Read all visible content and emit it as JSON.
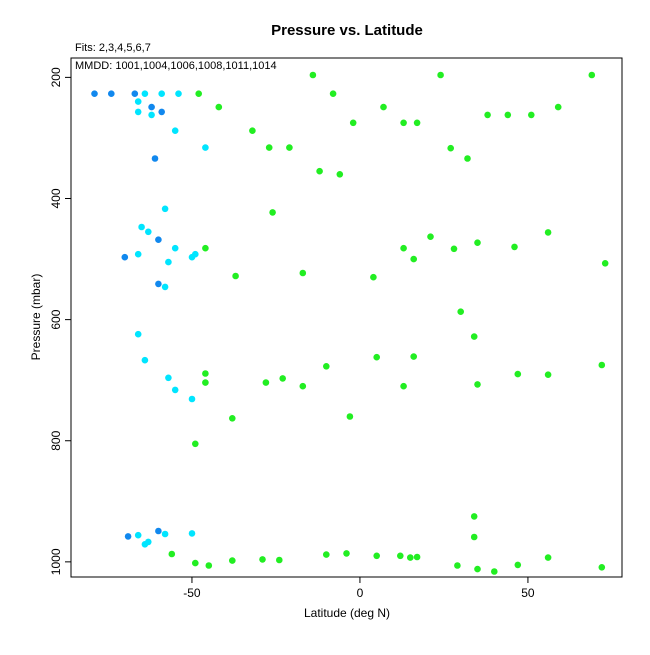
{
  "chart_data": {
    "type": "scatter",
    "title": "Pressure vs. Latitude",
    "subtitles": [
      "Fits: 2,3,4,5,6,7",
      "MMDD: 1001,1004,1006,1008,1011,1014"
    ],
    "xlabel": "Latitude (deg N)",
    "ylabel": "Pressure (mbar)",
    "xlim": [
      -86,
      78
    ],
    "ylim": [
      1025,
      168
    ],
    "y_inverted": true,
    "grid": false,
    "x_ticks": [
      {
        "value": -50,
        "label": "-50"
      },
      {
        "value": 0,
        "label": "0"
      },
      {
        "value": 50,
        "label": "50"
      }
    ],
    "y_ticks": [
      {
        "value": 200,
        "label": "200"
      },
      {
        "value": 400,
        "label": "400"
      },
      {
        "value": 600,
        "label": "600"
      },
      {
        "value": 800,
        "label": "800"
      },
      {
        "value": 1000,
        "label": "1000"
      }
    ],
    "colors": {
      "dark_blue": "#1188ee",
      "cyan": "#00e5ff",
      "green": "#22ee22"
    },
    "series": [
      {
        "color": "#1188ee",
        "points": [
          [
            -79,
            227
          ],
          [
            -74,
            227
          ],
          [
            -67,
            227
          ],
          [
            -62,
            249
          ],
          [
            -59,
            257
          ],
          [
            -61,
            334
          ],
          [
            -70,
            497
          ],
          [
            -60,
            468
          ],
          [
            -60,
            541
          ],
          [
            -69,
            958
          ],
          [
            -60,
            949
          ]
        ]
      },
      {
        "color": "#00e5ff",
        "points": [
          [
            -64,
            227
          ],
          [
            -59,
            227
          ],
          [
            -54,
            227
          ],
          [
            -66,
            240
          ],
          [
            -66,
            257
          ],
          [
            -62,
            262
          ],
          [
            -55,
            288
          ],
          [
            -46,
            316
          ],
          [
            -58,
            417
          ],
          [
            -65,
            447
          ],
          [
            -63,
            455
          ],
          [
            -66,
            492
          ],
          [
            -55,
            482
          ],
          [
            -57,
            505
          ],
          [
            -58,
            546
          ],
          [
            -50,
            497
          ],
          [
            -49,
            492
          ],
          [
            -66,
            624
          ],
          [
            -64,
            667
          ],
          [
            -57,
            696
          ],
          [
            -55,
            716
          ],
          [
            -50,
            731
          ],
          [
            -66,
            956
          ],
          [
            -64,
            971
          ],
          [
            -63,
            967
          ],
          [
            -58,
            954
          ],
          [
            -50,
            953
          ]
        ]
      },
      {
        "color": "#22ee22",
        "points": [
          [
            -48,
            227
          ],
          [
            -42,
            249
          ],
          [
            -32,
            288
          ],
          [
            -27,
            316
          ],
          [
            -21,
            316
          ],
          [
            -14,
            196
          ],
          [
            -8,
            227
          ],
          [
            -2,
            275
          ],
          [
            7,
            249
          ],
          [
            13,
            275
          ],
          [
            17,
            275
          ],
          [
            24,
            196
          ],
          [
            27,
            317
          ],
          [
            32,
            334
          ],
          [
            38,
            262
          ],
          [
            44,
            262
          ],
          [
            51,
            262
          ],
          [
            59,
            249
          ],
          [
            69,
            196
          ],
          [
            -12,
            355
          ],
          [
            -6,
            360
          ],
          [
            -26,
            423
          ],
          [
            -46,
            482
          ],
          [
            -37,
            528
          ],
          [
            -17,
            523
          ],
          [
            4,
            530
          ],
          [
            13,
            482
          ],
          [
            16,
            500
          ],
          [
            21,
            463
          ],
          [
            28,
            483
          ],
          [
            35,
            473
          ],
          [
            46,
            480
          ],
          [
            56,
            456
          ],
          [
            73,
            507
          ],
          [
            30,
            587
          ],
          [
            34,
            628
          ],
          [
            -46,
            689
          ],
          [
            -46,
            704
          ],
          [
            -28,
            704
          ],
          [
            -23,
            697
          ],
          [
            -17,
            710
          ],
          [
            -10,
            677
          ],
          [
            5,
            662
          ],
          [
            13,
            710
          ],
          [
            16,
            661
          ],
          [
            35,
            707
          ],
          [
            47,
            690
          ],
          [
            56,
            691
          ],
          [
            72,
            675
          ],
          [
            -38,
            763
          ],
          [
            -3,
            760
          ],
          [
            -49,
            805
          ],
          [
            34,
            925
          ],
          [
            34,
            959
          ],
          [
            -56,
            987
          ],
          [
            -49,
            1002
          ],
          [
            -45,
            1006
          ],
          [
            -38,
            998
          ],
          [
            -29,
            996
          ],
          [
            -24,
            997
          ],
          [
            -10,
            988
          ],
          [
            -4,
            986
          ],
          [
            5,
            990
          ],
          [
            12,
            990
          ],
          [
            15,
            993
          ],
          [
            17,
            992
          ],
          [
            29,
            1006
          ],
          [
            35,
            1012
          ],
          [
            40,
            1016
          ],
          [
            47,
            1005
          ],
          [
            56,
            993
          ],
          [
            72,
            1009
          ]
        ]
      }
    ]
  }
}
